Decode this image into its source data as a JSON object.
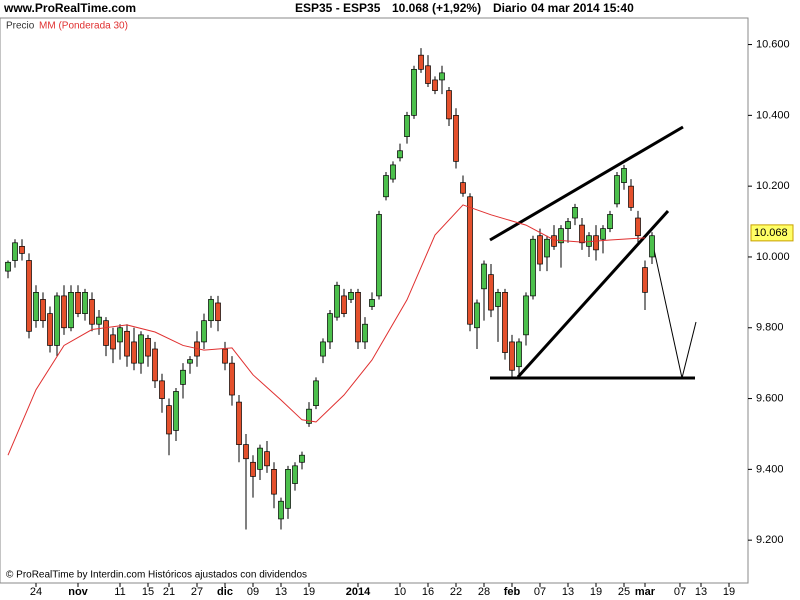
{
  "chart_data": {
    "type": "candlestick",
    "site": "www.ProRealTime.com",
    "title": "ESP35 - ESP35",
    "last_change": "10.068 (+1,92%)",
    "period": "Diario",
    "datetime": "04 mar 2014 15:40",
    "footer": "© ProRealTime by Interdin.com Históricos ajustados con dividendos",
    "categories": [
      null,
      null,
      null,
      null,
      "24",
      null,
      null,
      null,
      null,
      null,
      "nov",
      null,
      null,
      null,
      null,
      null,
      "11",
      null,
      null,
      null,
      "15",
      null,
      null,
      "21",
      null,
      null,
      null,
      "27",
      null,
      null,
      null,
      "dic",
      null,
      null,
      null,
      "09",
      null,
      null,
      null,
      "13",
      null,
      null,
      null,
      "19",
      null,
      null,
      null,
      null,
      null,
      null,
      "2014",
      null,
      null,
      null,
      null,
      null,
      "10",
      null,
      null,
      null,
      "16",
      null,
      null,
      null,
      "22",
      null,
      null,
      null,
      "28",
      null,
      null,
      null,
      "feb",
      null,
      null,
      null,
      "07",
      null,
      null,
      null,
      "13",
      null,
      null,
      null,
      "19",
      null,
      null,
      null,
      "25",
      null,
      null,
      "mar",
      null,
      null,
      null,
      null,
      "07",
      null,
      null,
      "13",
      null,
      null,
      null,
      "19",
      null,
      null
    ],
    "series": [
      {
        "name": "Precio",
        "up_color": "#4cc04c",
        "down_color": "#e4502c",
        "open": [
          9960,
          9990,
          10030,
          9990,
          9820,
          9880,
          9840,
          9750,
          9890,
          9800,
          9900,
          9840,
          9880,
          9810,
          9820,
          9780,
          9760,
          9790,
          9760,
          9700,
          9770,
          9740,
          9650,
          9580,
          9510,
          9640,
          9700,
          9760,
          9760,
          9820,
          9870,
          9740,
          9700,
          9590,
          9470,
          9420,
          9400,
          9450,
          9400,
          9260,
          9290,
          9360,
          9420,
          9530,
          9580,
          9720,
          9760,
          9830,
          9890,
          9880,
          9900,
          9760,
          9860,
          9890,
          10170,
          10220,
          10280,
          10340,
          10400,
          10570,
          10540,
          10500,
          10500,
          10470,
          10400,
          10210,
          10170,
          9800,
          9910,
          9950,
          9860,
          9900,
          9760,
          9690,
          9780,
          9890,
          10060,
          10000,
          10060,
          10040,
          10080,
          10110,
          10090,
          10030,
          10060,
          10050,
          10080,
          10150,
          10210,
          10200,
          10110,
          9970,
          10000,
          null,
          null,
          null,
          null,
          null,
          null,
          null,
          null,
          null,
          null,
          null,
          null,
          null
        ],
        "high": [
          9990,
          10050,
          10050,
          10010,
          9920,
          9900,
          9860,
          9900,
          9920,
          9920,
          9920,
          9910,
          9900,
          9850,
          9830,
          9800,
          9810,
          9810,
          9800,
          9790,
          9780,
          9760,
          9670,
          9600,
          9630,
          9700,
          9720,
          9790,
          9840,
          9890,
          9890,
          9760,
          9720,
          9610,
          9500,
          9440,
          9470,
          9480,
          9420,
          9320,
          9410,
          9420,
          9450,
          9590,
          9660,
          9770,
          9850,
          9930,
          9910,
          9910,
          9910,
          9830,
          9900,
          10130,
          10240,
          10270,
          10320,
          10410,
          10540,
          10590,
          10570,
          10510,
          10540,
          10480,
          10420,
          10230,
          10180,
          9880,
          9990,
          9980,
          9910,
          9910,
          9780,
          9770,
          9900,
          10060,
          10080,
          10060,
          10090,
          10090,
          10110,
          10150,
          10110,
          10070,
          10090,
          10090,
          10130,
          10240,
          10260,
          10220,
          10130,
          9990,
          10070,
          null,
          null,
          null,
          null,
          null,
          null,
          null,
          null,
          null,
          null,
          null,
          null,
          null
        ],
        "low": [
          9940,
          9970,
          9990,
          9770,
          9800,
          9800,
          9730,
          9720,
          9780,
          9790,
          9830,
          9820,
          9790,
          9780,
          9720,
          9700,
          9710,
          9690,
          9680,
          9670,
          9690,
          9630,
          9560,
          9440,
          9480,
          9600,
          9670,
          9690,
          9740,
          9800,
          9790,
          9680,
          9580,
          9420,
          9230,
          9320,
          9370,
          9390,
          9290,
          9230,
          9260,
          9340,
          9400,
          9520,
          9570,
          9700,
          9740,
          9820,
          9830,
          9870,
          9740,
          9740,
          9850,
          9880,
          10160,
          10210,
          10270,
          10320,
          10390,
          10520,
          10480,
          10460,
          10460,
          10370,
          10250,
          10170,
          9790,
          9740,
          9820,
          9830,
          9760,
          9710,
          9660,
          9660,
          9750,
          9880,
          9960,
          9960,
          10020,
          9970,
          10040,
          10090,
          10020,
          10000,
          9990,
          10010,
          10070,
          10140,
          10190,
          10130,
          10040,
          9850,
          9980,
          null,
          null,
          null,
          null,
          null,
          null,
          null,
          null,
          null,
          null,
          null,
          null,
          null
        ],
        "close": [
          9985,
          10040,
          10010,
          9790,
          9900,
          9820,
          9750,
          9890,
          9800,
          9900,
          9840,
          9900,
          9810,
          9830,
          9750,
          9740,
          9800,
          9720,
          9700,
          9780,
          9720,
          9650,
          9600,
          9500,
          9620,
          9680,
          9710,
          9720,
          9820,
          9880,
          9820,
          9700,
          9610,
          9470,
          9430,
          9380,
          9460,
          9410,
          9330,
          9310,
          9400,
          9410,
          9440,
          9570,
          9650,
          9760,
          9840,
          9920,
          9840,
          9900,
          9760,
          9810,
          9880,
          10120,
          10230,
          10260,
          10300,
          10400,
          10530,
          10530,
          10490,
          10470,
          10520,
          10390,
          10270,
          10180,
          9810,
          9870,
          9980,
          9850,
          9900,
          9730,
          9680,
          9760,
          9890,
          10050,
          9980,
          10050,
          10030,
          10080,
          10100,
          10140,
          10040,
          10060,
          10020,
          10080,
          10120,
          10230,
          10250,
          10140,
          10060,
          9900,
          10060,
          null,
          null,
          null,
          null,
          null,
          null,
          null,
          null,
          null,
          null,
          null,
          null,
          null
        ]
      },
      {
        "name": "MM (Ponderada 30)",
        "color": "#e03030",
        "x": [
          0,
          4,
          8,
          12,
          17,
          21,
          25,
          28,
          32,
          35,
          39,
          42,
          44,
          48,
          52,
          57,
          61,
          65,
          69,
          74,
          78,
          82,
          86,
          91
        ],
        "values": [
          9440,
          9625,
          9750,
          9795,
          9808,
          9788,
          9750,
          9737,
          9743,
          9667,
          9596,
          9540,
          9534,
          9610,
          9709,
          9879,
          10062,
          10147,
          10119,
          10090,
          10048,
          10042,
          10048,
          10054
        ]
      }
    ],
    "ylim": [
      9079,
      10675
    ],
    "yticks": [
      {
        "value": 9200,
        "label": "9.200"
      },
      {
        "value": 9400,
        "label": "9.400"
      },
      {
        "value": 9600,
        "label": "9.600"
      },
      {
        "value": 9800,
        "label": "9.800"
      },
      {
        "value": 10000,
        "label": "10.000"
      },
      {
        "value": 10200,
        "label": "10.200"
      },
      {
        "value": 10400,
        "label": "10.400"
      },
      {
        "value": 10600,
        "label": "10.600"
      }
    ],
    "price_tag": {
      "value": 10068,
      "label": "10.068"
    }
  }
}
